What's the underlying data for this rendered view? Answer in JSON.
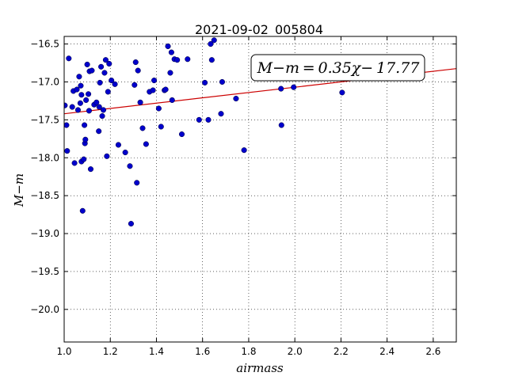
{
  "chart_data": {
    "type": "scatter",
    "title": "2021-09-02_005804",
    "xlabel": "airmass",
    "ylabel": "M−m",
    "xlim": [
      1.0,
      2.7
    ],
    "ylim": [
      -16.4,
      -20.43
    ],
    "y_inverted": true,
    "grid": true,
    "x_ticks": [
      "1.0",
      "1.2",
      "1.4",
      "1.6",
      "1.8",
      "2.0",
      "2.2",
      "2.4",
      "2.6"
    ],
    "x_tick_values": [
      1.0,
      1.2,
      1.4,
      1.6,
      1.8,
      2.0,
      2.2,
      2.4,
      2.6
    ],
    "y_ticks": [
      "−16.5",
      "−17.0",
      "−17.5",
      "−18.0",
      "−18.5",
      "−19.0",
      "−19.5",
      "−20.0"
    ],
    "y_tick_values": [
      -16.5,
      -17.0,
      -17.5,
      -18.0,
      -18.5,
      -19.0,
      -19.5,
      -20.0
    ],
    "point_color": "#0000cc",
    "fit_color": "#cc0000",
    "fit_annotation": "M−m = 0.35χ− 17.77",
    "fit": {
      "slope": 0.35,
      "intercept": -17.77
    },
    "points": [
      {
        "x": 1.003,
        "y": -17.31
      },
      {
        "x": 1.01,
        "y": -17.57
      },
      {
        "x": 1.013,
        "y": -17.91
      },
      {
        "x": 1.02,
        "y": -16.69
      },
      {
        "x": 1.035,
        "y": -17.33
      },
      {
        "x": 1.04,
        "y": -17.12
      },
      {
        "x": 1.045,
        "y": -18.07
      },
      {
        "x": 1.055,
        "y": -17.1
      },
      {
        "x": 1.06,
        "y": -17.37
      },
      {
        "x": 1.065,
        "y": -16.93
      },
      {
        "x": 1.07,
        "y": -17.28
      },
      {
        "x": 1.072,
        "y": -17.05
      },
      {
        "x": 1.075,
        "y": -17.17
      },
      {
        "x": 1.075,
        "y": -18.05
      },
      {
        "x": 1.08,
        "y": -18.7
      },
      {
        "x": 1.085,
        "y": -18.02
      },
      {
        "x": 1.088,
        "y": -17.57
      },
      {
        "x": 1.09,
        "y": -17.81
      },
      {
        "x": 1.092,
        "y": -17.76
      },
      {
        "x": 1.095,
        "y": -17.24
      },
      {
        "x": 1.1,
        "y": -16.77
      },
      {
        "x": 1.105,
        "y": -17.16
      },
      {
        "x": 1.108,
        "y": -17.38
      },
      {
        "x": 1.11,
        "y": -16.86
      },
      {
        "x": 1.115,
        "y": -18.15
      },
      {
        "x": 1.12,
        "y": -16.85
      },
      {
        "x": 1.13,
        "y": -17.3
      },
      {
        "x": 1.14,
        "y": -17.27
      },
      {
        "x": 1.15,
        "y": -17.65
      },
      {
        "x": 1.152,
        "y": -17.33
      },
      {
        "x": 1.155,
        "y": -17.01
      },
      {
        "x": 1.16,
        "y": -16.8
      },
      {
        "x": 1.165,
        "y": -17.45
      },
      {
        "x": 1.17,
        "y": -17.37
      },
      {
        "x": 1.175,
        "y": -16.88
      },
      {
        "x": 1.18,
        "y": -16.71
      },
      {
        "x": 1.185,
        "y": -17.98
      },
      {
        "x": 1.19,
        "y": -17.13
      },
      {
        "x": 1.195,
        "y": -16.76
      },
      {
        "x": 1.205,
        "y": -16.98
      },
      {
        "x": 1.22,
        "y": -17.03
      },
      {
        "x": 1.235,
        "y": -17.83
      },
      {
        "x": 1.265,
        "y": -17.93
      },
      {
        "x": 1.285,
        "y": -18.11
      },
      {
        "x": 1.29,
        "y": -18.87
      },
      {
        "x": 1.305,
        "y": -17.04
      },
      {
        "x": 1.31,
        "y": -16.74
      },
      {
        "x": 1.315,
        "y": -18.33
      },
      {
        "x": 1.32,
        "y": -16.85
      },
      {
        "x": 1.33,
        "y": -17.27
      },
      {
        "x": 1.34,
        "y": -17.61
      },
      {
        "x": 1.355,
        "y": -17.82
      },
      {
        "x": 1.37,
        "y": -17.13
      },
      {
        "x": 1.385,
        "y": -17.11
      },
      {
        "x": 1.39,
        "y": -16.98
      },
      {
        "x": 1.41,
        "y": -17.35
      },
      {
        "x": 1.42,
        "y": -17.59
      },
      {
        "x": 1.435,
        "y": -17.11
      },
      {
        "x": 1.44,
        "y": -17.1
      },
      {
        "x": 1.45,
        "y": -16.53
      },
      {
        "x": 1.46,
        "y": -16.88
      },
      {
        "x": 1.465,
        "y": -16.61
      },
      {
        "x": 1.468,
        "y": -17.24
      },
      {
        "x": 1.478,
        "y": -16.7
      },
      {
        "x": 1.49,
        "y": -16.71
      },
      {
        "x": 1.51,
        "y": -17.69
      },
      {
        "x": 1.535,
        "y": -16.7
      },
      {
        "x": 1.585,
        "y": -17.5
      },
      {
        "x": 1.61,
        "y": -17.01
      },
      {
        "x": 1.625,
        "y": -17.5
      },
      {
        "x": 1.635,
        "y": -16.5
      },
      {
        "x": 1.64,
        "y": -16.71
      },
      {
        "x": 1.65,
        "y": -16.45
      },
      {
        "x": 1.68,
        "y": -17.42
      },
      {
        "x": 1.685,
        "y": -17.0
      },
      {
        "x": 1.745,
        "y": -17.22
      },
      {
        "x": 1.78,
        "y": -17.9
      },
      {
        "x": 1.94,
        "y": -17.09
      },
      {
        "x": 1.942,
        "y": -17.57
      },
      {
        "x": 1.995,
        "y": -17.07
      },
      {
        "x": 2.205,
        "y": -17.14
      }
    ]
  }
}
